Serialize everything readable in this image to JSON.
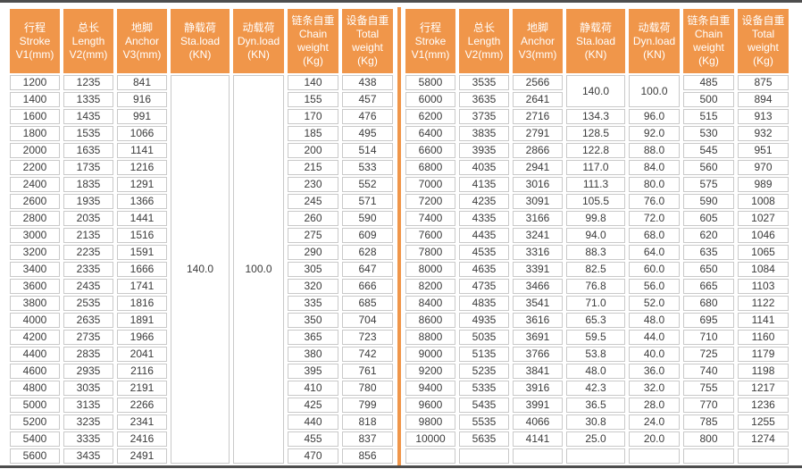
{
  "colors": {
    "header_bg": "#F0964A",
    "header_text": "#FFFFFF",
    "cell_border": "#C9C9C9",
    "cell_text": "#3B3B3B",
    "divider": "#F0964A",
    "frame_line": "#4D4D4D"
  },
  "columns": [
    {
      "id": "stroke",
      "lines": [
        "行程",
        "Stroke",
        "V1(mm)"
      ]
    },
    {
      "id": "length",
      "lines": [
        "总长",
        "Length",
        "V2(mm)"
      ]
    },
    {
      "id": "anchor",
      "lines": [
        "地脚",
        "Anchor",
        "V3(mm)"
      ]
    },
    {
      "id": "sta-load",
      "lines": [
        "静载荷",
        "Sta.load",
        "(KN)"
      ]
    },
    {
      "id": "dyn-load",
      "lines": [
        "动载荷",
        "Dyn.load",
        "(KN)"
      ]
    },
    {
      "id": "chain-weight",
      "lines": [
        "链条自重",
        "Chain",
        "weight",
        "(Kg)"
      ]
    },
    {
      "id": "total-weight",
      "lines": [
        "设备自重",
        "Total",
        "weight",
        "(Kg)"
      ]
    }
  ],
  "left_table": {
    "merged_sta_load": "140.0",
    "merged_dyn_load": "100.0",
    "merged_span": 23,
    "rows": [
      [
        "1200",
        "1235",
        "841",
        "140",
        "438"
      ],
      [
        "1400",
        "1335",
        "916",
        "155",
        "457"
      ],
      [
        "1600",
        "1435",
        "991",
        "170",
        "476"
      ],
      [
        "1800",
        "1535",
        "1066",
        "185",
        "495"
      ],
      [
        "2000",
        "1635",
        "1141",
        "200",
        "514"
      ],
      [
        "2200",
        "1735",
        "1216",
        "215",
        "533"
      ],
      [
        "2400",
        "1835",
        "1291",
        "230",
        "552"
      ],
      [
        "2600",
        "1935",
        "1366",
        "245",
        "571"
      ],
      [
        "2800",
        "2035",
        "1441",
        "260",
        "590"
      ],
      [
        "3000",
        "2135",
        "1516",
        "275",
        "609"
      ],
      [
        "3200",
        "2235",
        "1591",
        "290",
        "628"
      ],
      [
        "3400",
        "2335",
        "1666",
        "305",
        "647"
      ],
      [
        "3600",
        "2435",
        "1741",
        "320",
        "666"
      ],
      [
        "3800",
        "2535",
        "1816",
        "335",
        "685"
      ],
      [
        "4000",
        "2635",
        "1891",
        "350",
        "704"
      ],
      [
        "4200",
        "2735",
        "1966",
        "365",
        "723"
      ],
      [
        "4400",
        "2835",
        "2041",
        "380",
        "742"
      ],
      [
        "4600",
        "2935",
        "2116",
        "395",
        "761"
      ],
      [
        "4800",
        "3035",
        "2191",
        "410",
        "780"
      ],
      [
        "5000",
        "3135",
        "2266",
        "425",
        "799"
      ],
      [
        "5200",
        "3235",
        "2341",
        "440",
        "818"
      ],
      [
        "5400",
        "3335",
        "2416",
        "455",
        "837"
      ],
      [
        "5600",
        "3435",
        "2491",
        "470",
        "856"
      ]
    ]
  },
  "right_table": {
    "merged_sta_load": "140.0",
    "merged_dyn_load": "100.0",
    "merged_span": 2,
    "rows": [
      [
        "5800",
        "3535",
        "2566",
        null,
        null,
        "485",
        "875"
      ],
      [
        "6000",
        "3635",
        "2641",
        null,
        null,
        "500",
        "894"
      ],
      [
        "6200",
        "3735",
        "2716",
        "134.3",
        "96.0",
        "515",
        "913"
      ],
      [
        "6400",
        "3835",
        "2791",
        "128.5",
        "92.0",
        "530",
        "932"
      ],
      [
        "6600",
        "3935",
        "2866",
        "122.8",
        "88.0",
        "545",
        "951"
      ],
      [
        "6800",
        "4035",
        "2941",
        "117.0",
        "84.0",
        "560",
        "970"
      ],
      [
        "7000",
        "4135",
        "3016",
        "111.3",
        "80.0",
        "575",
        "989"
      ],
      [
        "7200",
        "4235",
        "3091",
        "105.5",
        "76.0",
        "590",
        "1008"
      ],
      [
        "7400",
        "4335",
        "3166",
        "99.8",
        "72.0",
        "605",
        "1027"
      ],
      [
        "7600",
        "4435",
        "3241",
        "94.0",
        "68.0",
        "620",
        "1046"
      ],
      [
        "7800",
        "4535",
        "3316",
        "88.3",
        "64.0",
        "635",
        "1065"
      ],
      [
        "8000",
        "4635",
        "3391",
        "82.5",
        "60.0",
        "650",
        "1084"
      ],
      [
        "8200",
        "4735",
        "3466",
        "76.8",
        "56.0",
        "665",
        "1103"
      ],
      [
        "8400",
        "4835",
        "3541",
        "71.0",
        "52.0",
        "680",
        "1122"
      ],
      [
        "8600",
        "4935",
        "3616",
        "65.3",
        "48.0",
        "695",
        "1141"
      ],
      [
        "8800",
        "5035",
        "3691",
        "59.5",
        "44.0",
        "710",
        "1160"
      ],
      [
        "9000",
        "5135",
        "3766",
        "53.8",
        "40.0",
        "725",
        "1179"
      ],
      [
        "9200",
        "5235",
        "3841",
        "48.0",
        "36.0",
        "740",
        "1198"
      ],
      [
        "9400",
        "5335",
        "3916",
        "42.3",
        "32.0",
        "755",
        "1217"
      ],
      [
        "9600",
        "5435",
        "3991",
        "36.5",
        "28.0",
        "770",
        "1236"
      ],
      [
        "9800",
        "5535",
        "4066",
        "30.8",
        "24.0",
        "785",
        "1255"
      ],
      [
        "10000",
        "5635",
        "4141",
        "25.0",
        "20.0",
        "800",
        "1274"
      ],
      [
        "",
        "",
        "",
        "",
        "",
        "",
        ""
      ]
    ]
  }
}
